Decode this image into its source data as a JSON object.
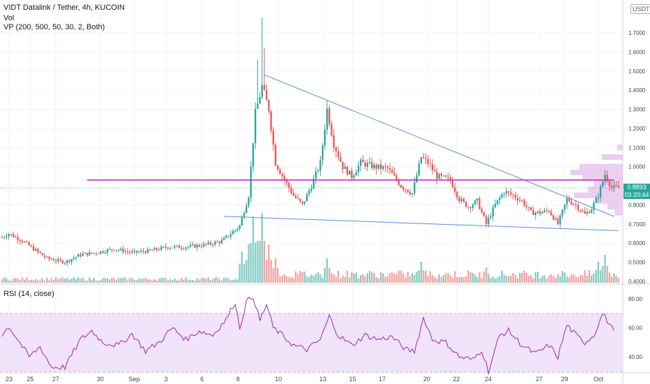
{
  "header": {
    "symbol_line": "VIDT Datalink / Tether, 4h, KUCOIN",
    "vol_label": "Vol",
    "vp_label": "VP (200, 500, 50, 30, 2, Both)"
  },
  "price_axis_unit": "USDT",
  "last_price": {
    "value": "0.8893",
    "countdown": "03:20:44"
  },
  "rsi": {
    "label": "RSI (14, close)",
    "ticks": [
      "80.00",
      "60.00",
      "40.00"
    ],
    "upper_band": 70,
    "lower_band": 30
  },
  "colors": {
    "up": "#26a69a",
    "down": "#ef5350",
    "trendline": "#5b8fd6",
    "support": "#c42fc4",
    "rsi_line": "#9b27b0",
    "rsi_fill": "#f1e3f9",
    "volume_profile": "#e9c6ee"
  },
  "chart_data": {
    "type": "candlestick",
    "title": "VIDT Datalink / Tether, 4h, KUCOIN",
    "y_unit": "USDT",
    "ylim": [
      0.4,
      1.8
    ],
    "y_ticks": [
      "1.7000",
      "1.6000",
      "1.5000",
      "1.4000",
      "1.3000",
      "1.2000",
      "1.1000",
      "1.0000",
      "0.9000",
      "0.8000",
      "0.7000",
      "0.6000",
      "0.5000",
      "0.4000"
    ],
    "x_ticks": [
      "23",
      "25",
      "27",
      "30",
      "Sep",
      "3",
      "6",
      "8",
      "10",
      "13",
      "15",
      "17",
      "20",
      "22",
      "24",
      "27",
      "29",
      "Oct"
    ],
    "support_line_price": 0.93,
    "last_price": 0.8893,
    "price_anchors": [
      {
        "i": 0,
        "p": 0.63
      },
      {
        "i": 3,
        "p": 0.65
      },
      {
        "i": 8,
        "p": 0.62
      },
      {
        "i": 14,
        "p": 0.57
      },
      {
        "i": 20,
        "p": 0.52
      },
      {
        "i": 28,
        "p": 0.5
      },
      {
        "i": 35,
        "p": 0.54
      },
      {
        "i": 42,
        "p": 0.55
      },
      {
        "i": 50,
        "p": 0.57
      },
      {
        "i": 58,
        "p": 0.55
      },
      {
        "i": 66,
        "p": 0.56
      },
      {
        "i": 74,
        "p": 0.58
      },
      {
        "i": 82,
        "p": 0.58
      },
      {
        "i": 90,
        "p": 0.59
      },
      {
        "i": 98,
        "p": 0.61
      },
      {
        "i": 106,
        "p": 0.69
      },
      {
        "i": 110,
        "p": 0.85
      },
      {
        "i": 113,
        "p": 1.28
      },
      {
        "i": 116,
        "p": 1.42
      },
      {
        "i": 119,
        "p": 1.3
      },
      {
        "i": 122,
        "p": 1.02
      },
      {
        "i": 126,
        "p": 0.93
      },
      {
        "i": 130,
        "p": 0.85
      },
      {
        "i": 134,
        "p": 0.8
      },
      {
        "i": 138,
        "p": 0.9
      },
      {
        "i": 142,
        "p": 1.02
      },
      {
        "i": 145,
        "p": 1.3
      },
      {
        "i": 148,
        "p": 1.12
      },
      {
        "i": 152,
        "p": 1.0
      },
      {
        "i": 156,
        "p": 0.95
      },
      {
        "i": 160,
        "p": 1.02
      },
      {
        "i": 166,
        "p": 1.0
      },
      {
        "i": 172,
        "p": 0.99
      },
      {
        "i": 178,
        "p": 0.9
      },
      {
        "i": 183,
        "p": 0.86
      },
      {
        "i": 187,
        "p": 1.05
      },
      {
        "i": 190,
        "p": 1.02
      },
      {
        "i": 194,
        "p": 0.95
      },
      {
        "i": 200,
        "p": 0.93
      },
      {
        "i": 204,
        "p": 0.83
      },
      {
        "i": 208,
        "p": 0.79
      },
      {
        "i": 212,
        "p": 0.82
      },
      {
        "i": 216,
        "p": 0.7
      },
      {
        "i": 220,
        "p": 0.8
      },
      {
        "i": 224,
        "p": 0.87
      },
      {
        "i": 228,
        "p": 0.85
      },
      {
        "i": 232,
        "p": 0.82
      },
      {
        "i": 236,
        "p": 0.76
      },
      {
        "i": 240,
        "p": 0.76
      },
      {
        "i": 244,
        "p": 0.77
      },
      {
        "i": 248,
        "p": 0.7
      },
      {
        "i": 252,
        "p": 0.83
      },
      {
        "i": 256,
        "p": 0.8
      },
      {
        "i": 260,
        "p": 0.75
      },
      {
        "i": 263,
        "p": 0.78
      },
      {
        "i": 266,
        "p": 0.85
      },
      {
        "i": 269,
        "p": 0.96
      },
      {
        "i": 272,
        "p": 0.89
      }
    ],
    "rsi_anchors": [
      {
        "i": 0,
        "v": 55
      },
      {
        "i": 3,
        "v": 61
      },
      {
        "i": 7,
        "v": 52
      },
      {
        "i": 12,
        "v": 40
      },
      {
        "i": 17,
        "v": 47
      },
      {
        "i": 22,
        "v": 33
      },
      {
        "i": 28,
        "v": 33
      },
      {
        "i": 35,
        "v": 52
      },
      {
        "i": 40,
        "v": 58
      },
      {
        "i": 45,
        "v": 50
      },
      {
        "i": 52,
        "v": 48
      },
      {
        "i": 58,
        "v": 56
      },
      {
        "i": 64,
        "v": 44
      },
      {
        "i": 70,
        "v": 50
      },
      {
        "i": 76,
        "v": 60
      },
      {
        "i": 82,
        "v": 52
      },
      {
        "i": 88,
        "v": 58
      },
      {
        "i": 94,
        "v": 55
      },
      {
        "i": 100,
        "v": 66
      },
      {
        "i": 104,
        "v": 78
      },
      {
        "i": 106,
        "v": 60
      },
      {
        "i": 109,
        "v": 78
      },
      {
        "i": 112,
        "v": 82
      },
      {
        "i": 115,
        "v": 65
      },
      {
        "i": 118,
        "v": 76
      },
      {
        "i": 121,
        "v": 60
      },
      {
        "i": 125,
        "v": 55
      },
      {
        "i": 130,
        "v": 48
      },
      {
        "i": 136,
        "v": 45
      },
      {
        "i": 142,
        "v": 52
      },
      {
        "i": 146,
        "v": 68
      },
      {
        "i": 150,
        "v": 55
      },
      {
        "i": 156,
        "v": 48
      },
      {
        "i": 162,
        "v": 55
      },
      {
        "i": 168,
        "v": 52
      },
      {
        "i": 174,
        "v": 54
      },
      {
        "i": 180,
        "v": 45
      },
      {
        "i": 184,
        "v": 44
      },
      {
        "i": 188,
        "v": 67
      },
      {
        "i": 192,
        "v": 52
      },
      {
        "i": 198,
        "v": 50
      },
      {
        "i": 204,
        "v": 40
      },
      {
        "i": 210,
        "v": 38
      },
      {
        "i": 214,
        "v": 45
      },
      {
        "i": 217,
        "v": 30
      },
      {
        "i": 222,
        "v": 55
      },
      {
        "i": 226,
        "v": 58
      },
      {
        "i": 232,
        "v": 48
      },
      {
        "i": 238,
        "v": 42
      },
      {
        "i": 244,
        "v": 48
      },
      {
        "i": 248,
        "v": 40
      },
      {
        "i": 252,
        "v": 62
      },
      {
        "i": 256,
        "v": 55
      },
      {
        "i": 260,
        "v": 50
      },
      {
        "i": 264,
        "v": 55
      },
      {
        "i": 268,
        "v": 70
      },
      {
        "i": 272,
        "v": 60
      }
    ],
    "volume_spikes": [
      {
        "i": 107,
        "v": 0.45
      },
      {
        "i": 110,
        "v": 0.55
      },
      {
        "i": 112,
        "v": 0.95
      },
      {
        "i": 114,
        "v": 0.6
      },
      {
        "i": 116,
        "v": 1.0
      },
      {
        "i": 119,
        "v": 0.55
      },
      {
        "i": 122,
        "v": 0.35
      },
      {
        "i": 145,
        "v": 0.35
      },
      {
        "i": 187,
        "v": 0.3
      },
      {
        "i": 216,
        "v": 0.22
      },
      {
        "i": 266,
        "v": 0.3
      },
      {
        "i": 269,
        "v": 0.4
      }
    ],
    "trendlines": [
      {
        "from": {
          "i": 117,
          "p": 1.48
        },
        "to": {
          "i": 273,
          "p": 0.74
        }
      },
      {
        "from": {
          "i": 99,
          "p": 0.74
        },
        "to": {
          "i": 275,
          "p": 0.665
        }
      }
    ]
  }
}
